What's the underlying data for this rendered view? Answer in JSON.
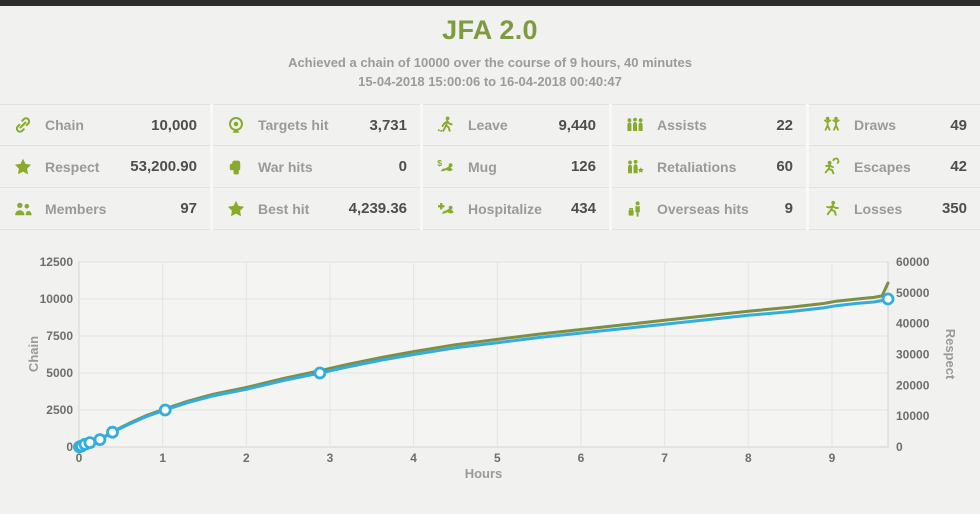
{
  "header": {
    "title": "JFA 2.0",
    "subtitle": "Achieved a chain of 10000 over the course of 9 hours, 40 minutes",
    "date_range": "15-04-2018 15:00:06 to 16-04-2018 00:40:47"
  },
  "colors": {
    "accent_green": "#87ab2b",
    "title_green": "#7e9c3e",
    "chain_line_blue": "#33ade0",
    "respect_line_olive": "#7d8f45",
    "topbar_dark": "#2d2d2b",
    "label_gray": "#9a9a98",
    "value_gray": "#4e4e4c"
  },
  "stats": {
    "columns": [
      {
        "items": [
          {
            "icon": "link",
            "label": "Chain",
            "value": "10,000"
          },
          {
            "icon": "star",
            "label": "Respect",
            "value": "53,200.90"
          },
          {
            "icon": "members",
            "label": "Members",
            "value": "97"
          }
        ]
      },
      {
        "items": [
          {
            "icon": "target",
            "label": "Targets hit",
            "value": "3,731"
          },
          {
            "icon": "fist",
            "label": "War hits",
            "value": "0"
          },
          {
            "icon": "star",
            "label": "Best hit",
            "value": "4,239.36"
          }
        ]
      },
      {
        "items": [
          {
            "icon": "walk",
            "label": "Leave",
            "value": "9,440"
          },
          {
            "icon": "mug",
            "label": "Mug",
            "value": "126"
          },
          {
            "icon": "hospitalize",
            "label": "Hospitalize",
            "value": "434"
          }
        ]
      },
      {
        "items": [
          {
            "icon": "assists",
            "label": "Assists",
            "value": "22"
          },
          {
            "icon": "retaliations",
            "label": "Retaliations",
            "value": "60"
          },
          {
            "icon": "overseas",
            "label": "Overseas hits",
            "value": "9"
          }
        ]
      },
      {
        "items": [
          {
            "icon": "draws",
            "label": "Draws",
            "value": "49"
          },
          {
            "icon": "escapes",
            "label": "Escapes",
            "value": "42"
          },
          {
            "icon": "losses",
            "label": "Losses",
            "value": "350"
          }
        ]
      }
    ]
  },
  "chart_data": {
    "type": "line",
    "xlabel": "Hours",
    "ylabel_left": "Chain",
    "ylabel_right": "Respect",
    "xlim": [
      0,
      9.67
    ],
    "x_ticks": [
      0,
      1,
      2,
      3,
      4,
      5,
      6,
      7,
      8,
      9
    ],
    "ylim_left": [
      0,
      12500
    ],
    "yticks_left": [
      0,
      2500,
      5000,
      7500,
      10000,
      12500
    ],
    "ylim_right": [
      0,
      60000
    ],
    "yticks_right": [
      0,
      10000,
      20000,
      30000,
      40000,
      50000,
      60000
    ],
    "grid": true,
    "legend": "none",
    "x": [
      0,
      0.03,
      0.08,
      0.15,
      0.25,
      0.4,
      0.6,
      0.8,
      1.03,
      1.3,
      1.6,
      2,
      2.45,
      2.88,
      3.2,
      3.6,
      4,
      4.5,
      5,
      5.5,
      6,
      6.5,
      7,
      7.5,
      8,
      8.5,
      8.9,
      9.05,
      9.3,
      9.5,
      9.6,
      9.67
    ],
    "series": [
      {
        "name": "Respect",
        "axis": "right",
        "color": "#7d8f45",
        "y": [
          0,
          297,
          990,
          1733,
          2475,
          4950,
          7673,
          10148,
          12375,
          14850,
          17078,
          19305,
          22275,
          24750,
          26730,
          28958,
          30938,
          33165,
          34898,
          36630,
          38115,
          39600,
          41085,
          42570,
          44055,
          45293,
          46530,
          47273,
          48015,
          48510,
          49005,
          53201
        ]
      },
      {
        "name": "Chain",
        "axis": "left",
        "color": "#33ade0",
        "y": [
          0,
          60,
          200,
          350,
          500,
          1000,
          1550,
          2050,
          2500,
          3000,
          3450,
          3900,
          4500,
          5000,
          5400,
          5850,
          6250,
          6700,
          7050,
          7400,
          7700,
          8000,
          8300,
          8600,
          8900,
          9150,
          9400,
          9550,
          9700,
          9800,
          9900,
          10000
        ]
      }
    ],
    "milestone_markers": {
      "series": "Chain",
      "points": [
        [
          0.005,
          10
        ],
        [
          0.03,
          60
        ],
        [
          0.07,
          180
        ],
        [
          0.13,
          300
        ],
        [
          0.25,
          500
        ],
        [
          0.4,
          1000
        ],
        [
          1.03,
          2500
        ],
        [
          2.88,
          5000
        ],
        [
          9.67,
          10000
        ]
      ],
      "style": {
        "fill": "#ffffff",
        "stroke": "#33ade0"
      }
    }
  }
}
